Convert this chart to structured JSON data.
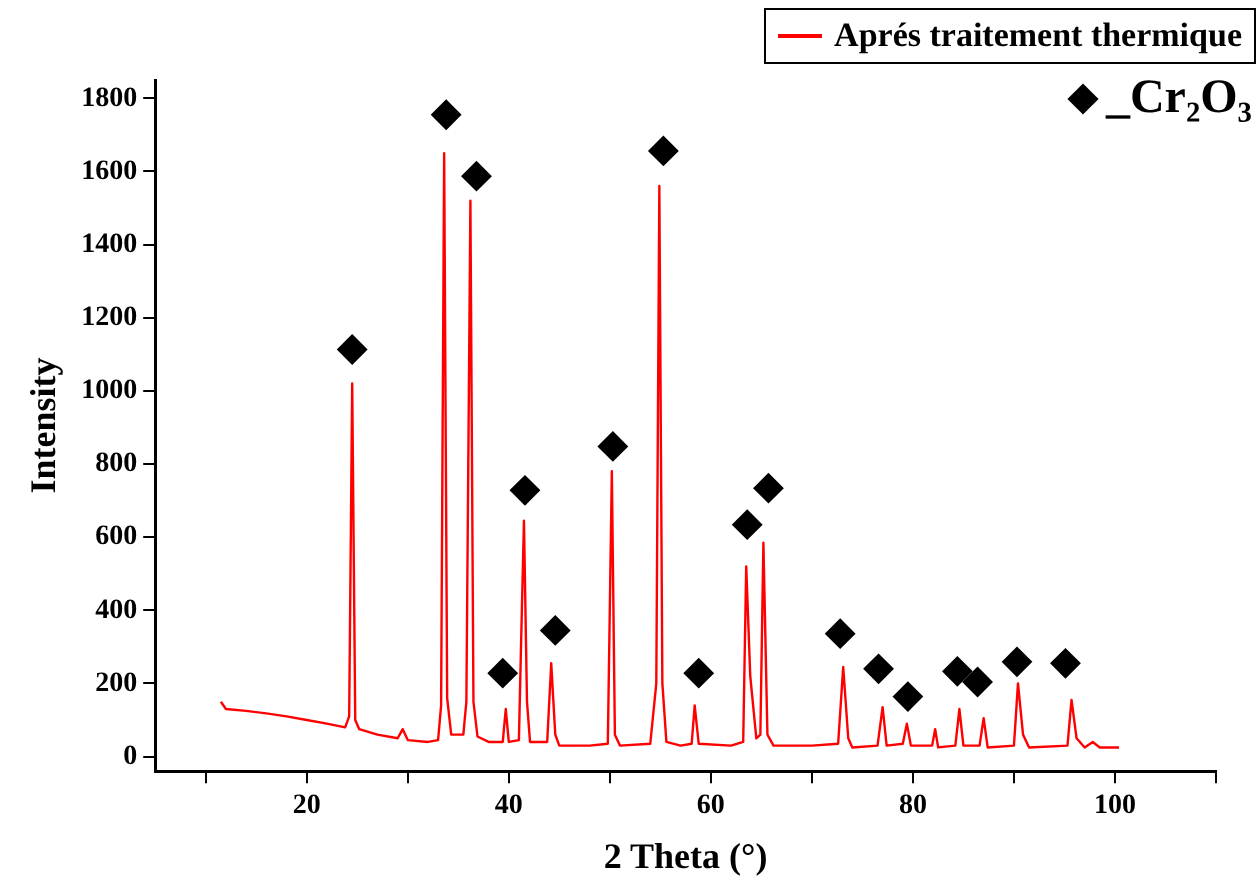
{
  "chart_data": {
    "type": "line",
    "xlabel": "2 Theta (°)",
    "ylabel": "Intensity",
    "xlim": [
      5,
      110
    ],
    "ylim": [
      -40,
      1850
    ],
    "xticks": [
      {
        "value": 10,
        "label": null
      },
      20,
      {
        "value": 30,
        "label": null
      },
      40,
      {
        "value": 50,
        "label": null
      },
      60,
      {
        "value": 70,
        "label": null
      },
      80,
      {
        "value": 90,
        "label": null
      },
      100,
      {
        "value": 110,
        "label": null
      }
    ],
    "yticks": [
      0,
      200,
      400,
      600,
      800,
      1000,
      1200,
      1400,
      1600,
      1800
    ],
    "grid": false,
    "legend": "top right",
    "series": [
      {
        "name": "Aprés traitement thermique",
        "color": "#ff0000",
        "marker": "none",
        "line_style": "solid",
        "x": [
          11.5,
          12,
          14,
          16,
          18,
          20,
          22,
          23.8,
          24.2,
          24.5,
          24.8,
          25.2,
          27,
          29,
          29.5,
          30,
          32,
          33,
          33.3,
          33.6,
          33.9,
          34.3,
          35.5,
          35.8,
          36.2,
          36.5,
          36.9,
          38,
          39.4,
          39.7,
          40,
          41,
          41.2,
          41.5,
          41.8,
          42.1,
          43.8,
          44.2,
          44.6,
          45,
          48,
          49.8,
          50.2,
          50.5,
          51,
          54,
          54.6,
          54.9,
          55.2,
          55.6,
          57,
          58.1,
          58.4,
          58.8,
          62,
          63.2,
          63.5,
          63.9,
          64.5,
          64.9,
          65.2,
          65.6,
          66.2,
          70,
          72.6,
          73.1,
          73.6,
          74,
          76.5,
          77,
          77.4,
          79,
          79.4,
          79.8,
          81.9,
          82.2,
          82.5,
          84.2,
          84.6,
          85,
          86.6,
          87,
          87.4,
          90,
          90.4,
          90.9,
          91.5,
          95.3,
          95.7,
          96.2,
          97,
          97.8,
          98.5,
          100.4
        ],
        "values": [
          150,
          130,
          125,
          118,
          110,
          100,
          90,
          80,
          110,
          1020,
          100,
          75,
          60,
          50,
          75,
          45,
          40,
          45,
          140,
          1650,
          160,
          60,
          60,
          150,
          1520,
          150,
          55,
          40,
          40,
          130,
          40,
          45,
          290,
          645,
          150,
          40,
          40,
          255,
          60,
          30,
          30,
          35,
          780,
          60,
          30,
          35,
          200,
          1560,
          200,
          40,
          30,
          35,
          140,
          35,
          30,
          40,
          520,
          220,
          50,
          60,
          585,
          60,
          30,
          30,
          35,
          245,
          50,
          25,
          30,
          135,
          30,
          35,
          90,
          30,
          30,
          75,
          25,
          30,
          130,
          30,
          30,
          105,
          25,
          30,
          200,
          60,
          25,
          30,
          155,
          50,
          25,
          40,
          25,
          25
        ]
      },
      {
        "name": "_Cr₂O₃",
        "type": "scatter",
        "color": "#000000",
        "marker": "diamond",
        "x": [
          24.5,
          33.8,
          36.8,
          39.4,
          41.6,
          44.6,
          50.3,
          55.3,
          58.8,
          63.6,
          65.7,
          72.8,
          76.6,
          79.5,
          84.4,
          86.4,
          90.3,
          95.1
        ],
        "values": [
          1113,
          1755,
          1587,
          228,
          728,
          345,
          848,
          1656,
          228,
          634,
          734,
          336,
          240,
          164,
          233,
          204,
          259,
          255
        ]
      }
    ]
  }
}
